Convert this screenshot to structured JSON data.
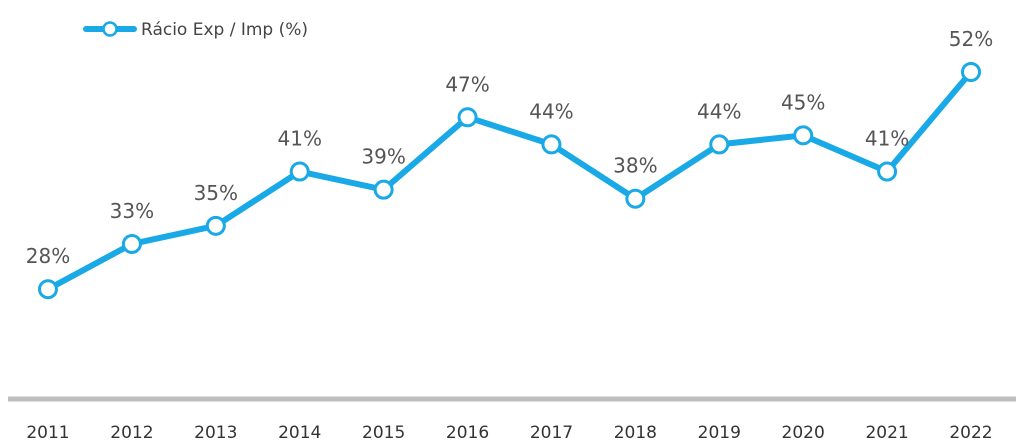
{
  "chart_data": {
    "type": "line",
    "categories": [
      "2011",
      "2012",
      "2013",
      "2014",
      "2015",
      "2016",
      "2017",
      "2018",
      "2019",
      "2020",
      "2021",
      "2022"
    ],
    "series": [
      {
        "name": "Rácio Exp / Imp (%)",
        "values": [
          28,
          33,
          35,
          41,
          39,
          47,
          44,
          38,
          44,
          45,
          41,
          52
        ]
      }
    ],
    "data_labels": [
      "28%",
      "33%",
      "35%",
      "41%",
      "39%",
      "47%",
      "44%",
      "38%",
      "44%",
      "45%",
      "41%",
      "52%"
    ],
    "legend_position": "top-left",
    "grid": false,
    "colors": {
      "line": "#19a9e6",
      "marker_fill": "#ffffff",
      "axis": "#bfbfbf"
    }
  }
}
